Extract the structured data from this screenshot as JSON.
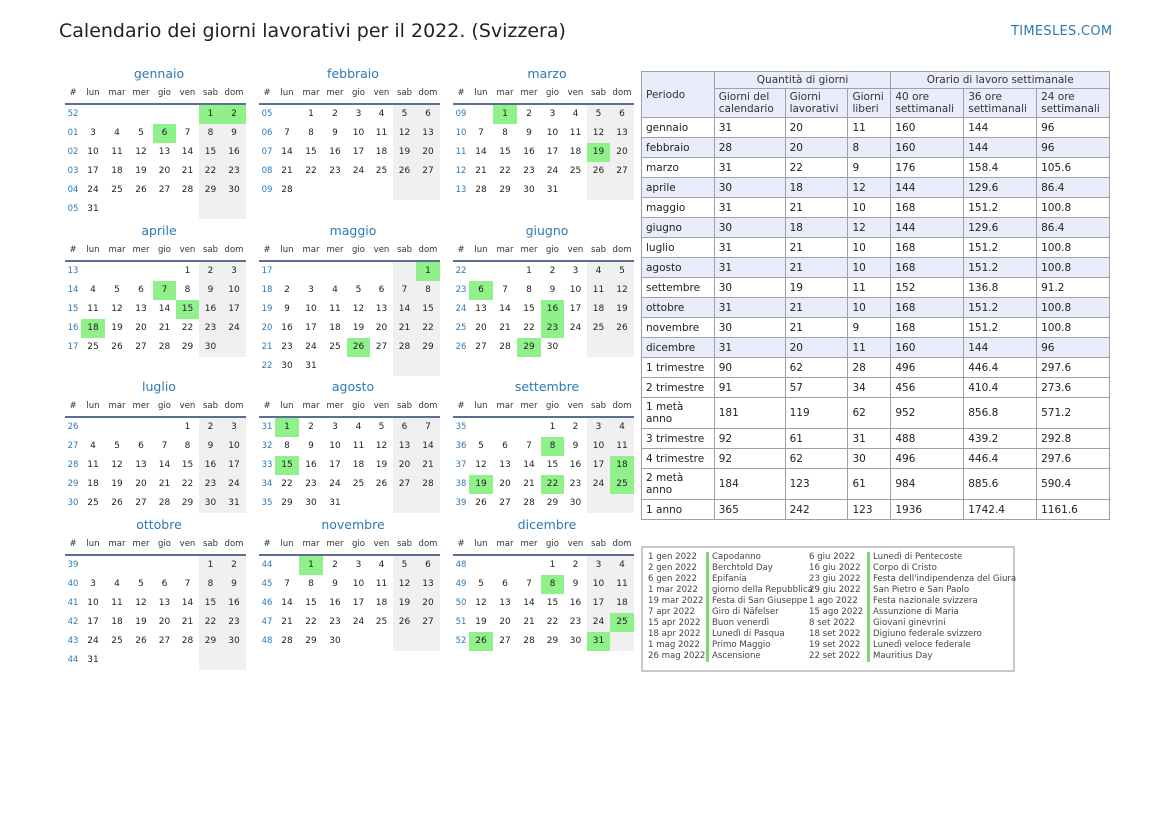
{
  "page": {
    "title": "Calendario dei giorni lavorativi per il 2022. (Svizzera)",
    "site": "TIMESLES.COM"
  },
  "colors": {
    "accent": "#2a7ab8",
    "holiday": "#90f08a",
    "weekend": "#f0f0f0",
    "header_bg": "#e8ecfb"
  },
  "calendar": {
    "week_header": [
      "#",
      "lun",
      "mar",
      "mer",
      "gio",
      "ven",
      "sab",
      "dom"
    ],
    "months": [
      {
        "name": "gennaio",
        "weeks": [
          {
            "n": "52",
            "d": [
              "",
              "",
              "",
              "",
              "",
              "1",
              "2"
            ]
          },
          {
            "n": "01",
            "d": [
              "3",
              "4",
              "5",
              "6",
              "7",
              "8",
              "9"
            ]
          },
          {
            "n": "02",
            "d": [
              "10",
              "11",
              "12",
              "13",
              "14",
              "15",
              "16"
            ]
          },
          {
            "n": "03",
            "d": [
              "17",
              "18",
              "19",
              "20",
              "21",
              "22",
              "23"
            ]
          },
          {
            "n": "04",
            "d": [
              "24",
              "25",
              "26",
              "27",
              "28",
              "29",
              "30"
            ]
          },
          {
            "n": "05",
            "d": [
              "31",
              "",
              "",
              "",
              "",
              "",
              ""
            ]
          }
        ],
        "holidays": [
          "1",
          "2",
          "6"
        ]
      },
      {
        "name": "febbraio",
        "weeks": [
          {
            "n": "05",
            "d": [
              "",
              "1",
              "2",
              "3",
              "4",
              "5",
              "6"
            ]
          },
          {
            "n": "06",
            "d": [
              "7",
              "8",
              "9",
              "10",
              "11",
              "12",
              "13"
            ]
          },
          {
            "n": "07",
            "d": [
              "14",
              "15",
              "16",
              "17",
              "18",
              "19",
              "20"
            ]
          },
          {
            "n": "08",
            "d": [
              "21",
              "22",
              "23",
              "24",
              "25",
              "26",
              "27"
            ]
          },
          {
            "n": "09",
            "d": [
              "28",
              "",
              "",
              "",
              "",
              "",
              ""
            ]
          }
        ],
        "holidays": []
      },
      {
        "name": "marzo",
        "weeks": [
          {
            "n": "09",
            "d": [
              "",
              "1",
              "2",
              "3",
              "4",
              "5",
              "6"
            ]
          },
          {
            "n": "10",
            "d": [
              "7",
              "8",
              "9",
              "10",
              "11",
              "12",
              "13"
            ]
          },
          {
            "n": "11",
            "d": [
              "14",
              "15",
              "16",
              "17",
              "18",
              "19",
              "20"
            ]
          },
          {
            "n": "12",
            "d": [
              "21",
              "22",
              "23",
              "24",
              "25",
              "26",
              "27"
            ]
          },
          {
            "n": "13",
            "d": [
              "28",
              "29",
              "30",
              "31",
              "",
              "",
              ""
            ]
          }
        ],
        "holidays": [
          "1",
          "19"
        ]
      },
      {
        "name": "aprile",
        "weeks": [
          {
            "n": "13",
            "d": [
              "",
              "",
              "",
              "",
              "1",
              "2",
              "3"
            ]
          },
          {
            "n": "14",
            "d": [
              "4",
              "5",
              "6",
              "7",
              "8",
              "9",
              "10"
            ]
          },
          {
            "n": "15",
            "d": [
              "11",
              "12",
              "13",
              "14",
              "15",
              "16",
              "17"
            ]
          },
          {
            "n": "16",
            "d": [
              "18",
              "19",
              "20",
              "21",
              "22",
              "23",
              "24"
            ]
          },
          {
            "n": "17",
            "d": [
              "25",
              "26",
              "27",
              "28",
              "29",
              "30",
              ""
            ]
          }
        ],
        "holidays": [
          "7",
          "15",
          "18"
        ]
      },
      {
        "name": "maggio",
        "weeks": [
          {
            "n": "17",
            "d": [
              "",
              "",
              "",
              "",
              "",
              "",
              "1"
            ]
          },
          {
            "n": "18",
            "d": [
              "2",
              "3",
              "4",
              "5",
              "6",
              "7",
              "8"
            ]
          },
          {
            "n": "19",
            "d": [
              "9",
              "10",
              "11",
              "12",
              "13",
              "14",
              "15"
            ]
          },
          {
            "n": "20",
            "d": [
              "16",
              "17",
              "18",
              "19",
              "20",
              "21",
              "22"
            ]
          },
          {
            "n": "21",
            "d": [
              "23",
              "24",
              "25",
              "26",
              "27",
              "28",
              "29"
            ]
          },
          {
            "n": "22",
            "d": [
              "30",
              "31",
              "",
              "",
              "",
              "",
              ""
            ]
          }
        ],
        "holidays": [
          "1",
          "26"
        ]
      },
      {
        "name": "giugno",
        "weeks": [
          {
            "n": "22",
            "d": [
              "",
              "",
              "1",
              "2",
              "3",
              "4",
              "5"
            ]
          },
          {
            "n": "23",
            "d": [
              "6",
              "7",
              "8",
              "9",
              "10",
              "11",
              "12"
            ]
          },
          {
            "n": "24",
            "d": [
              "13",
              "14",
              "15",
              "16",
              "17",
              "18",
              "19"
            ]
          },
          {
            "n": "25",
            "d": [
              "20",
              "21",
              "22",
              "23",
              "24",
              "25",
              "26"
            ]
          },
          {
            "n": "26",
            "d": [
              "27",
              "28",
              "29",
              "30",
              "",
              "",
              ""
            ]
          }
        ],
        "holidays": [
          "6",
          "16",
          "23",
          "29"
        ]
      },
      {
        "name": "luglio",
        "weeks": [
          {
            "n": "26",
            "d": [
              "",
              "",
              "",
              "",
              "1",
              "2",
              "3"
            ]
          },
          {
            "n": "27",
            "d": [
              "4",
              "5",
              "6",
              "7",
              "8",
              "9",
              "10"
            ]
          },
          {
            "n": "28",
            "d": [
              "11",
              "12",
              "13",
              "14",
              "15",
              "16",
              "17"
            ]
          },
          {
            "n": "29",
            "d": [
              "18",
              "19",
              "20",
              "21",
              "22",
              "23",
              "24"
            ]
          },
          {
            "n": "30",
            "d": [
              "25",
              "26",
              "27",
              "28",
              "29",
              "30",
              "31"
            ]
          }
        ],
        "holidays": []
      },
      {
        "name": "agosto",
        "weeks": [
          {
            "n": "31",
            "d": [
              "1",
              "2",
              "3",
              "4",
              "5",
              "6",
              "7"
            ]
          },
          {
            "n": "32",
            "d": [
              "8",
              "9",
              "10",
              "11",
              "12",
              "13",
              "14"
            ]
          },
          {
            "n": "33",
            "d": [
              "15",
              "16",
              "17",
              "18",
              "19",
              "20",
              "21"
            ]
          },
          {
            "n": "34",
            "d": [
              "22",
              "23",
              "24",
              "25",
              "26",
              "27",
              "28"
            ]
          },
          {
            "n": "35",
            "d": [
              "29",
              "30",
              "31",
              "",
              "",
              "",
              ""
            ]
          }
        ],
        "holidays": [
          "1",
          "15"
        ]
      },
      {
        "name": "settembre",
        "weeks": [
          {
            "n": "35",
            "d": [
              "",
              "",
              "",
              "1",
              "2",
              "3",
              "4"
            ]
          },
          {
            "n": "36",
            "d": [
              "5",
              "6",
              "7",
              "8",
              "9",
              "10",
              "11"
            ]
          },
          {
            "n": "37",
            "d": [
              "12",
              "13",
              "14",
              "15",
              "16",
              "17",
              "18"
            ]
          },
          {
            "n": "38",
            "d": [
              "19",
              "20",
              "21",
              "22",
              "23",
              "24",
              "25"
            ]
          },
          {
            "n": "39",
            "d": [
              "26",
              "27",
              "28",
              "29",
              "30",
              "",
              ""
            ]
          }
        ],
        "holidays": [
          "8",
          "18",
          "19",
          "22",
          "25"
        ]
      },
      {
        "name": "ottobre",
        "weeks": [
          {
            "n": "39",
            "d": [
              "",
              "",
              "",
              "",
              "",
              "1",
              "2"
            ]
          },
          {
            "n": "40",
            "d": [
              "3",
              "4",
              "5",
              "6",
              "7",
              "8",
              "9"
            ]
          },
          {
            "n": "41",
            "d": [
              "10",
              "11",
              "12",
              "13",
              "14",
              "15",
              "16"
            ]
          },
          {
            "n": "42",
            "d": [
              "17",
              "18",
              "19",
              "20",
              "21",
              "22",
              "23"
            ]
          },
          {
            "n": "43",
            "d": [
              "24",
              "25",
              "26",
              "27",
              "28",
              "29",
              "30"
            ]
          },
          {
            "n": "44",
            "d": [
              "31",
              "",
              "",
              "",
              "",
              "",
              ""
            ]
          }
        ],
        "holidays": []
      },
      {
        "name": "novembre",
        "weeks": [
          {
            "n": "44",
            "d": [
              "",
              "1",
              "2",
              "3",
              "4",
              "5",
              "6"
            ]
          },
          {
            "n": "45",
            "d": [
              "7",
              "8",
              "9",
              "10",
              "11",
              "12",
              "13"
            ]
          },
          {
            "n": "46",
            "d": [
              "14",
              "15",
              "16",
              "17",
              "18",
              "19",
              "20"
            ]
          },
          {
            "n": "47",
            "d": [
              "21",
              "22",
              "23",
              "24",
              "25",
              "26",
              "27"
            ]
          },
          {
            "n": "48",
            "d": [
              "28",
              "29",
              "30",
              "",
              "",
              "",
              ""
            ]
          }
        ],
        "holidays": [
          "1"
        ]
      },
      {
        "name": "dicembre",
        "weeks": [
          {
            "n": "48",
            "d": [
              "",
              "",
              "",
              "1",
              "2",
              "3",
              "4"
            ]
          },
          {
            "n": "49",
            "d": [
              "5",
              "6",
              "7",
              "8",
              "9",
              "10",
              "11"
            ]
          },
          {
            "n": "50",
            "d": [
              "12",
              "13",
              "14",
              "15",
              "16",
              "17",
              "18"
            ]
          },
          {
            "n": "51",
            "d": [
              "19",
              "20",
              "21",
              "22",
              "23",
              "24",
              "25"
            ]
          },
          {
            "n": "52",
            "d": [
              "26",
              "27",
              "28",
              "29",
              "30",
              "31",
              ""
            ]
          }
        ],
        "holidays": [
          "8",
          "25",
          "26",
          "31"
        ]
      }
    ]
  },
  "summary": {
    "headers": {
      "period": "Periodo",
      "qty_days": "Quantità di giorni",
      "weekly_hours": "Orario di lavoro settimanale",
      "cols": [
        "Giorni del calendario",
        "Giorni lavorativi",
        "Giorni liberi",
        "40 ore settimanali",
        "36 ore settimanali",
        "24 ore settimanali"
      ]
    },
    "rows": [
      [
        "gennaio",
        "31",
        "20",
        "11",
        "160",
        "144",
        "96"
      ],
      [
        "febbraio",
        "28",
        "20",
        "8",
        "160",
        "144",
        "96"
      ],
      [
        "marzo",
        "31",
        "22",
        "9",
        "176",
        "158.4",
        "105.6"
      ],
      [
        "aprile",
        "30",
        "18",
        "12",
        "144",
        "129.6",
        "86.4"
      ],
      [
        "maggio",
        "31",
        "21",
        "10",
        "168",
        "151.2",
        "100.8"
      ],
      [
        "giugno",
        "30",
        "18",
        "12",
        "144",
        "129.6",
        "86.4"
      ],
      [
        "luglio",
        "31",
        "21",
        "10",
        "168",
        "151.2",
        "100.8"
      ],
      [
        "agosto",
        "31",
        "21",
        "10",
        "168",
        "151.2",
        "100.8"
      ],
      [
        "settembre",
        "30",
        "19",
        "11",
        "152",
        "136.8",
        "91.2"
      ],
      [
        "ottobre",
        "31",
        "21",
        "10",
        "168",
        "151.2",
        "100.8"
      ],
      [
        "novembre",
        "30",
        "21",
        "9",
        "168",
        "151.2",
        "100.8"
      ],
      [
        "dicembre",
        "31",
        "20",
        "11",
        "160",
        "144",
        "96"
      ],
      [
        "1 trimestre",
        "90",
        "62",
        "28",
        "496",
        "446.4",
        "297.6"
      ],
      [
        "2 trimestre",
        "91",
        "57",
        "34",
        "456",
        "410.4",
        "273.6"
      ],
      [
        "1 metà anno",
        "181",
        "119",
        "62",
        "952",
        "856.8",
        "571.2"
      ],
      [
        "3 trimestre",
        "92",
        "61",
        "31",
        "488",
        "439.2",
        "292.8"
      ],
      [
        "4 trimestre",
        "92",
        "62",
        "30",
        "496",
        "446.4",
        "297.6"
      ],
      [
        "2 metà anno",
        "184",
        "123",
        "61",
        "984",
        "885.6",
        "590.4"
      ],
      [
        "1 anno",
        "365",
        "242",
        "123",
        "1936",
        "1742.4",
        "1161.6"
      ]
    ]
  },
  "holidays_list": [
    [
      "1 gen 2022",
      "Capodanno"
    ],
    [
      "2 gen 2022",
      "Berchtold Day"
    ],
    [
      "6 gen 2022",
      "Epifania"
    ],
    [
      "1 mar 2022",
      "giorno della Repubblica"
    ],
    [
      "19 mar 2022",
      "Festa di San Giuseppe"
    ],
    [
      "7 apr 2022",
      "Giro di Näfelser"
    ],
    [
      "15 apr 2022",
      "Buon venerdì"
    ],
    [
      "18 apr 2022",
      "Lunedì di Pasqua"
    ],
    [
      "1 mag 2022",
      "Primo Maggio"
    ],
    [
      "26 mag 2022",
      "Ascensione"
    ],
    [
      "6 giu 2022",
      "Lunedì di Pentecoste"
    ],
    [
      "16 giu 2022",
      "Corpo di Cristo"
    ],
    [
      "23 giu 2022",
      "Festa dell'indipendenza del Giura"
    ],
    [
      "29 giu 2022",
      "San Pietro e San Paolo"
    ],
    [
      "1 ago 2022",
      "Festa nazionale svizzera"
    ],
    [
      "15 ago 2022",
      "Assunzione di Maria"
    ],
    [
      "8 set 2022",
      "Giovani ginevrini"
    ],
    [
      "18 set 2022",
      "Digiuno federale svizzero"
    ],
    [
      "19 set 2022",
      "Lunedì veloce federale"
    ],
    [
      "22 set 2022",
      "Mauritius Day"
    ]
  ]
}
